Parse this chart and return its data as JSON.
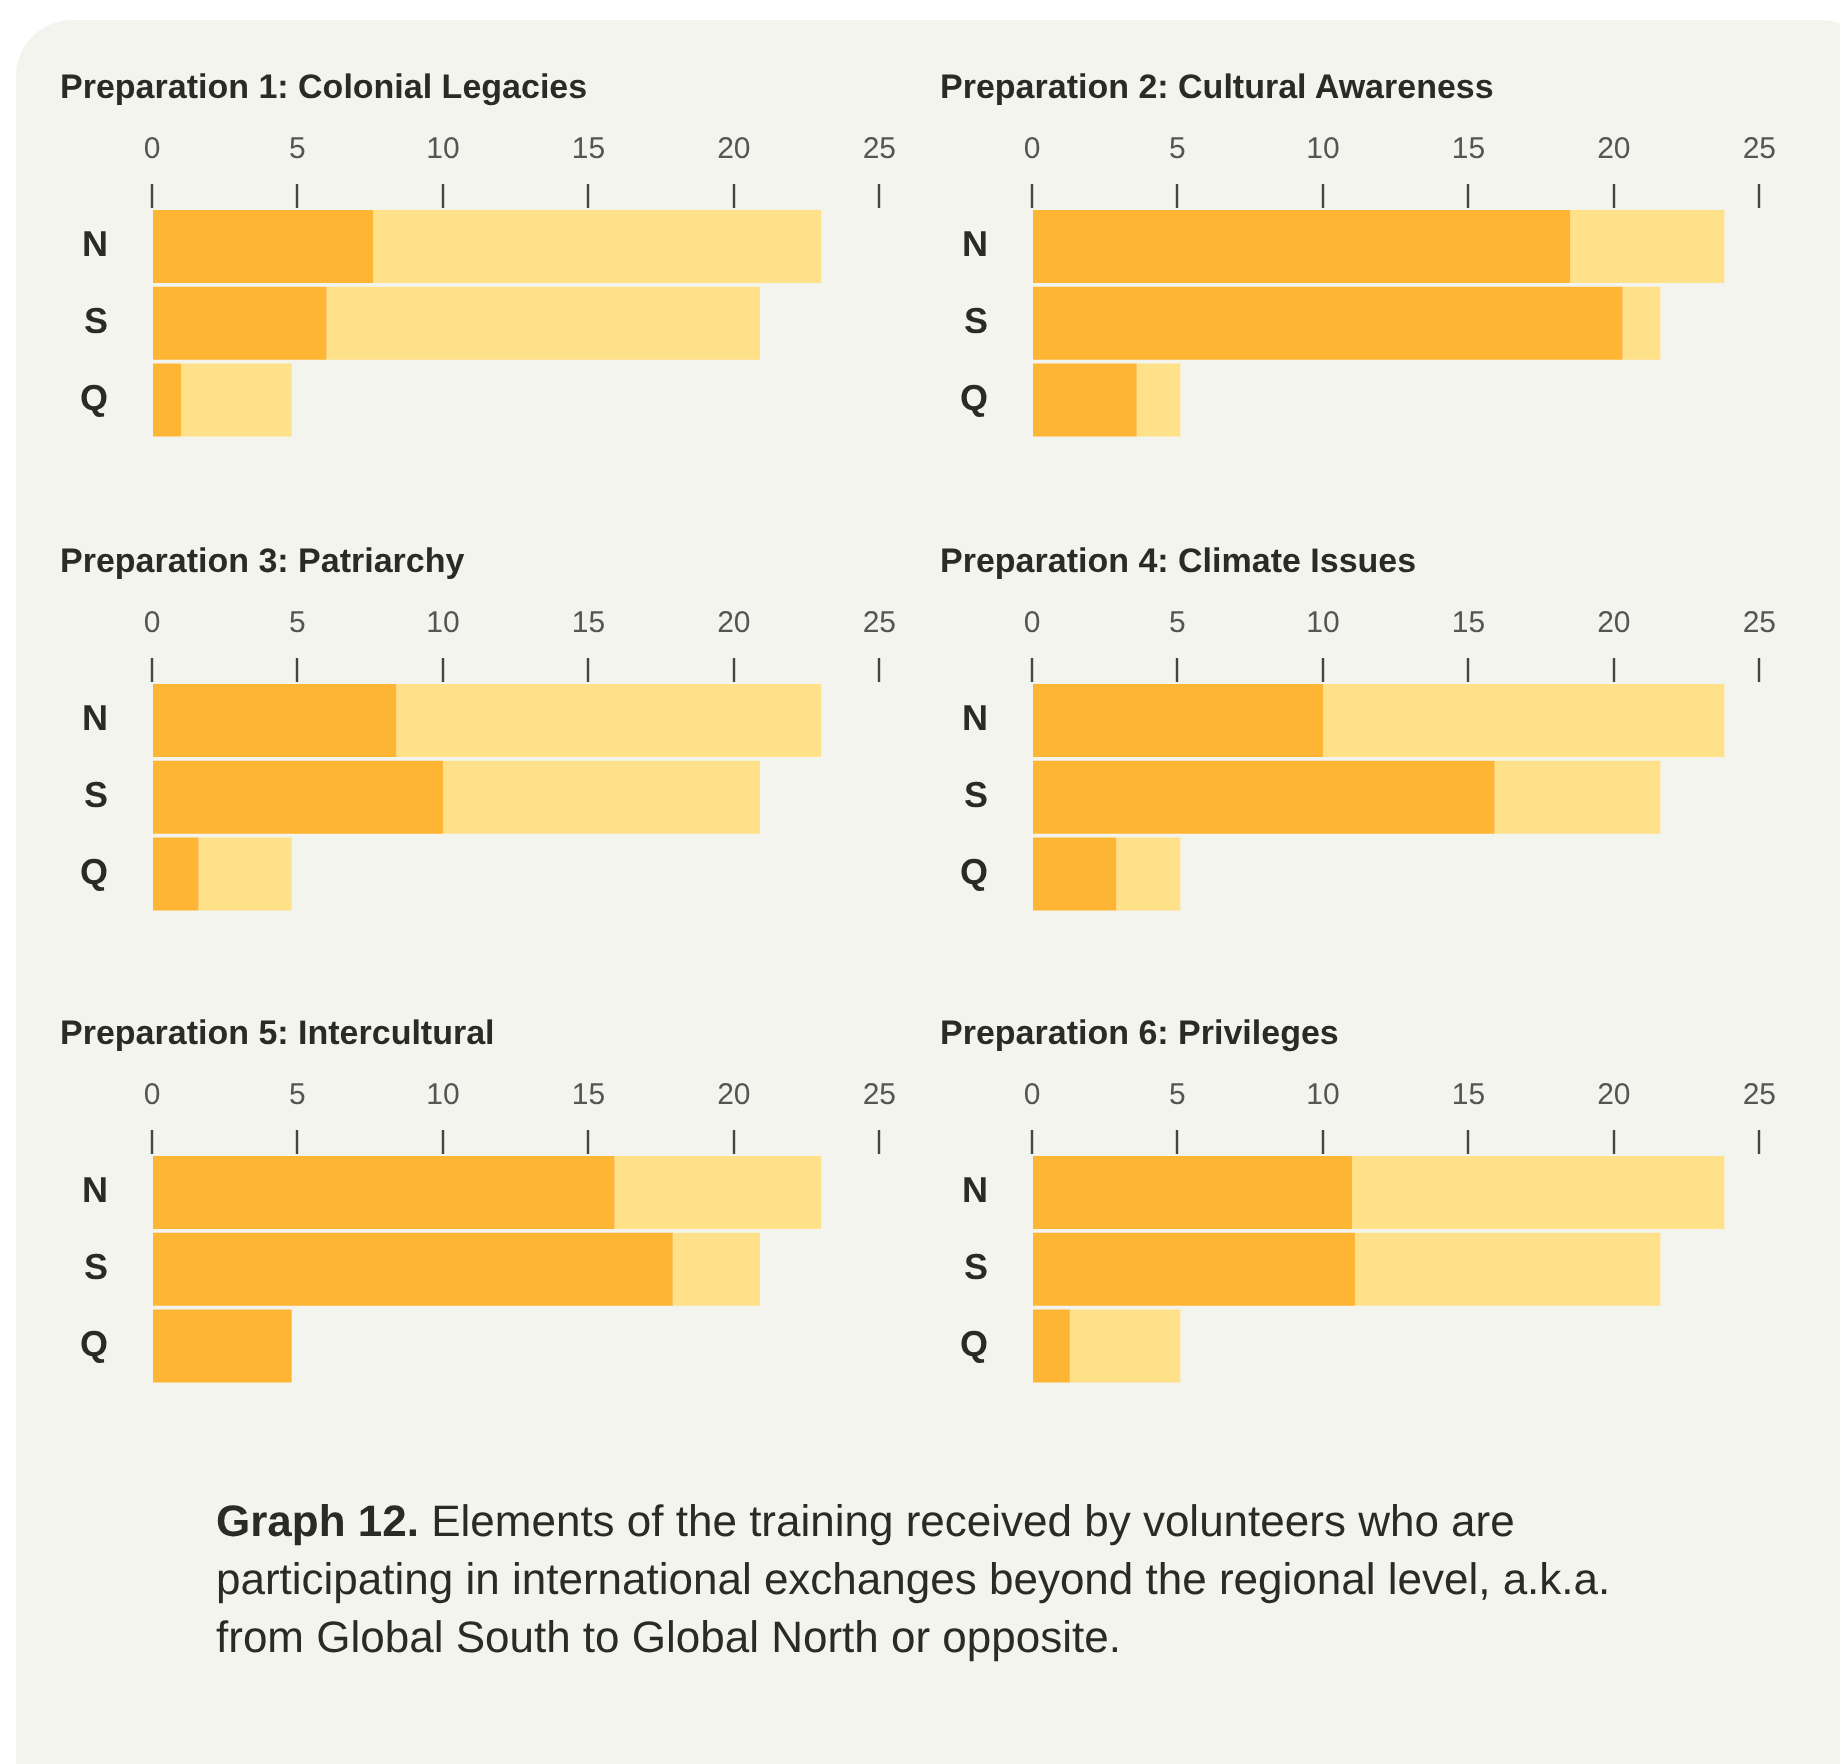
{
  "chart_data": [
    {
      "type": "bar",
      "orientation": "horizontal",
      "stacked": true,
      "title": "Preparation 1: Colonial Legacies",
      "categories": [
        "N",
        "S",
        "Q"
      ],
      "xlim": [
        0,
        25
      ],
      "xticks": [
        0,
        5,
        10,
        15,
        20,
        25
      ],
      "series": [
        {
          "color": "#ffb534",
          "values": [
            7.6,
            6.0,
            1.0
          ]
        },
        {
          "color": "#ffe18a",
          "values": [
            15.4,
            14.9,
            3.8
          ]
        }
      ]
    },
    {
      "type": "bar",
      "orientation": "horizontal",
      "stacked": true,
      "title": "Preparation 2: Cultural Awareness",
      "categories": [
        "N",
        "S",
        "Q"
      ],
      "xlim": [
        0,
        25
      ],
      "xticks": [
        0,
        5,
        10,
        15,
        20,
        25
      ],
      "series": [
        {
          "color": "#ffb534",
          "values": [
            18.5,
            20.3,
            3.6
          ]
        },
        {
          "color": "#ffe18a",
          "values": [
            5.3,
            1.3,
            1.5
          ]
        }
      ]
    },
    {
      "type": "bar",
      "orientation": "horizontal",
      "stacked": true,
      "title": "Preparation 3: Patriarchy",
      "categories": [
        "N",
        "S",
        "Q"
      ],
      "xlim": [
        0,
        25
      ],
      "xticks": [
        0,
        5,
        10,
        15,
        20,
        25
      ],
      "series": [
        {
          "color": "#ffb534",
          "values": [
            8.4,
            10.0,
            1.6
          ]
        },
        {
          "color": "#ffe18a",
          "values": [
            14.6,
            10.9,
            3.2
          ]
        }
      ]
    },
    {
      "type": "bar",
      "orientation": "horizontal",
      "stacked": true,
      "title": "Preparation 4: Climate Issues",
      "categories": [
        "N",
        "S",
        "Q"
      ],
      "xlim": [
        0,
        25
      ],
      "xticks": [
        0,
        5,
        10,
        15,
        20,
        25
      ],
      "series": [
        {
          "color": "#ffb534",
          "values": [
            10.0,
            15.9,
            2.9
          ]
        },
        {
          "color": "#ffe18a",
          "values": [
            13.8,
            5.7,
            2.2
          ]
        }
      ]
    },
    {
      "type": "bar",
      "orientation": "horizontal",
      "stacked": true,
      "title": "Preparation 5: Intercultural",
      "categories": [
        "N",
        "S",
        "Q"
      ],
      "xlim": [
        0,
        25
      ],
      "xticks": [
        0,
        5,
        10,
        15,
        20,
        25
      ],
      "series": [
        {
          "color": "#ffb534",
          "values": [
            15.9,
            17.9,
            4.8
          ]
        },
        {
          "color": "#ffe18a",
          "values": [
            7.1,
            3.0,
            0
          ]
        }
      ]
    },
    {
      "type": "bar",
      "orientation": "horizontal",
      "stacked": true,
      "title": "Preparation 6: Privileges",
      "categories": [
        "N",
        "S",
        "Q"
      ],
      "xlim": [
        0,
        25
      ],
      "xticks": [
        0,
        5,
        10,
        15,
        20,
        25
      ],
      "series": [
        {
          "color": "#ffb534",
          "values": [
            11.0,
            11.1,
            1.3
          ]
        },
        {
          "color": "#ffe18a",
          "values": [
            12.8,
            10.5,
            3.8
          ]
        }
      ],
      "annotations": [
        "Graph 12.",
        "Elements of the training received by volunteers who are participating in international exchanges beyond the regional level, a.k.a. from Global South to Global North or opposite."
      ]
    }
  ]
}
